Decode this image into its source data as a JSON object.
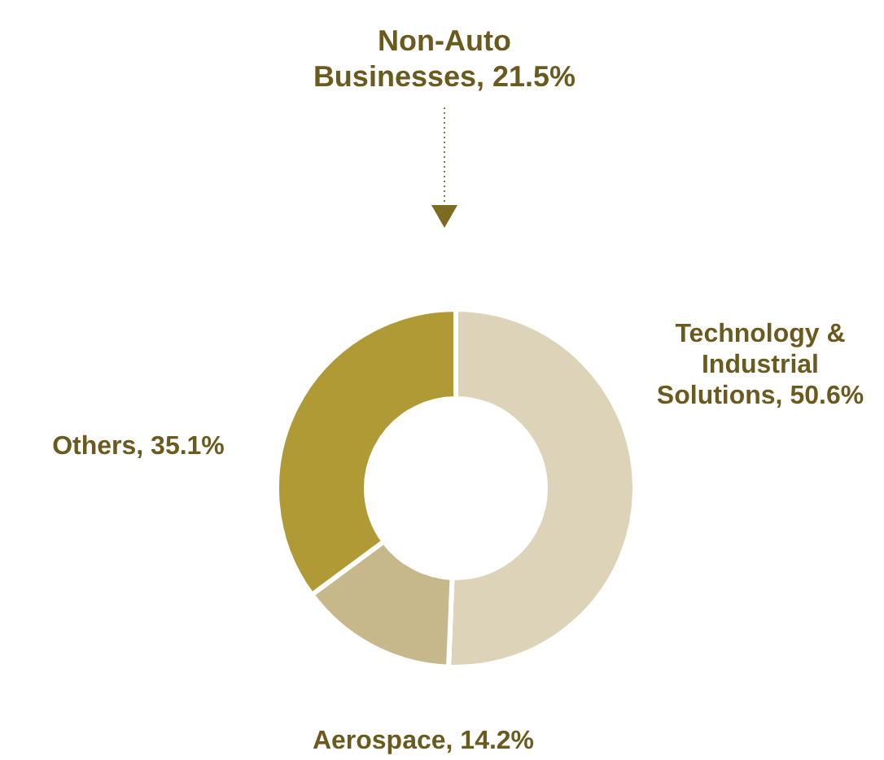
{
  "chart_data": {
    "type": "donut",
    "title": "Non-Auto Businesses, 21.5%",
    "categories": [
      "Technology & Industrial Solutions",
      "Aerospace",
      "Others"
    ],
    "values": [
      50.6,
      14.2,
      35.1
    ],
    "colors": [
      "#dcd3b9",
      "#c6b88a",
      "#b09a36"
    ],
    "value_labels": [
      "50.6%",
      "14.2%",
      "35.1%"
    ],
    "legend": false
  }
}
